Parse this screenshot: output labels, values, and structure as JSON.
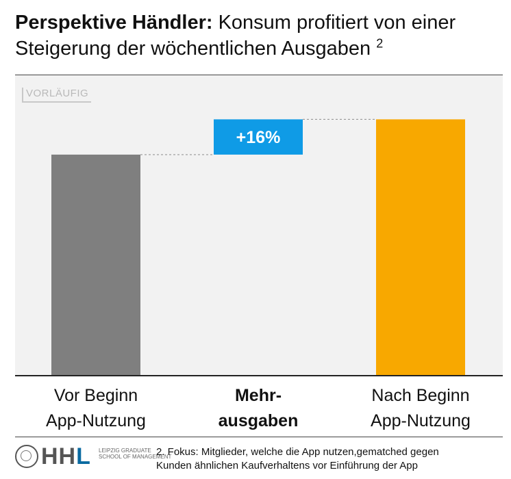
{
  "title": {
    "bold": "Perspektive Händler:",
    "text": "Konsum profitiert von einer Steigerung der wöchentlichen Ausgaben",
    "superscript": "2"
  },
  "stamp": "VORLÄUFIG",
  "chart_data": {
    "type": "waterfall",
    "categories": [
      "Vor Beginn App-Nutzung",
      "Mehr-ausgaben",
      "Nach Beginn App-Nutzung"
    ],
    "values": [
      100,
      16,
      116
    ],
    "data_labels": [
      "",
      "+16%",
      ""
    ],
    "colors": [
      "#7f7f7f",
      "#0f9be6",
      "#f8a800"
    ],
    "ylim": [
      0,
      136
    ],
    "grid": false
  },
  "categories_display": [
    {
      "line1": "Vor Beginn",
      "line2": "App-Nutzung"
    },
    {
      "line1": "Mehr-",
      "line2": "ausgaben"
    },
    {
      "line1": "Nach Beginn",
      "line2": "App-Nutzung"
    }
  ],
  "logo": {
    "name": "HHL",
    "subtitle": "Leipzig Graduate School of Management"
  },
  "footnote": {
    "line1": "2. Fokus: Mitglieder, welche die App nutzen,gematched gegen",
    "line2": "Kunden ähnlichen Kaufverhaltens vor Einführung der App"
  }
}
